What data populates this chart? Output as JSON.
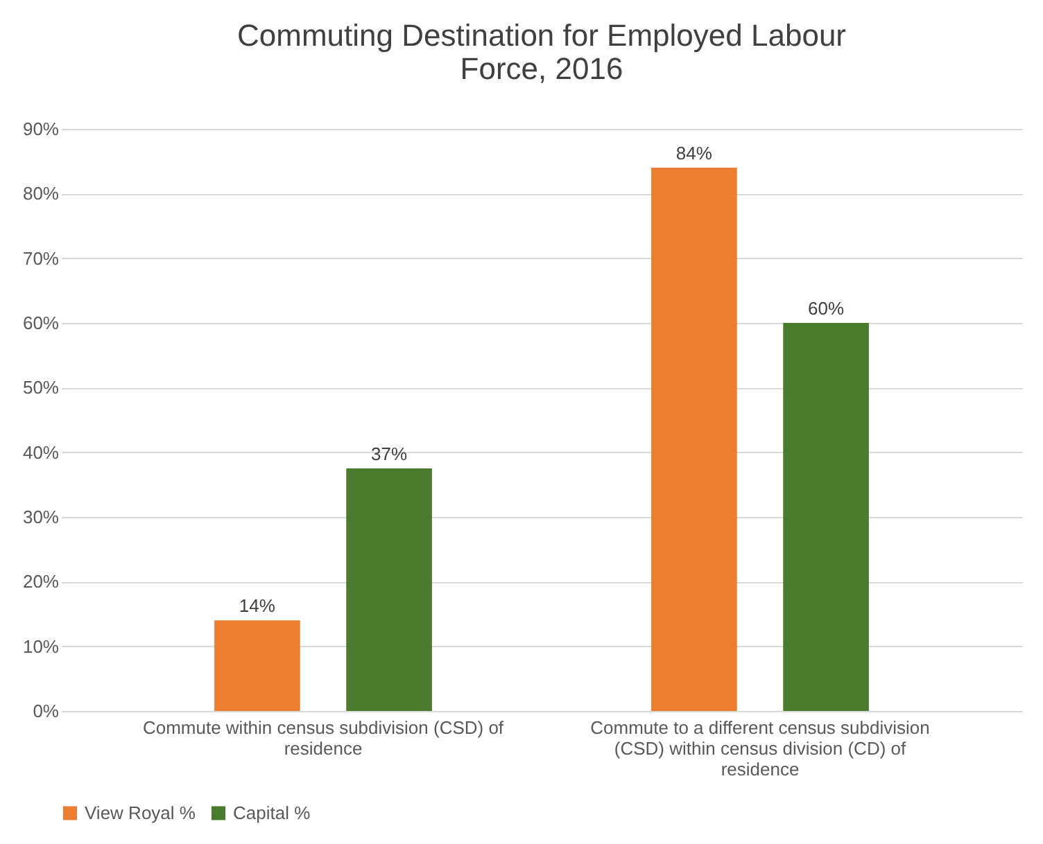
{
  "chart_data": {
    "type": "bar",
    "title": "Commuting Destination for Employed Labour Force, 2016",
    "categories": [
      "Commute within census subdivision (CSD) of residence",
      "Commute to a different census subdivision (CSD) within census division (CD) of residence"
    ],
    "series": [
      {
        "name": "View Royal %",
        "color": "#ed7d31",
        "values": [
          14,
          84
        ],
        "value_labels": [
          "14%",
          "84%"
        ]
      },
      {
        "name": "Capital %",
        "color": "#4a7a2c",
        "values": [
          37.5,
          60
        ],
        "value_labels": [
          "37%",
          "60%"
        ]
      }
    ],
    "ylim": [
      0,
      90
    ],
    "yticks": [
      {
        "value": 0,
        "label": "0%"
      },
      {
        "value": 10,
        "label": "10%"
      },
      {
        "value": 20,
        "label": "20%"
      },
      {
        "value": 30,
        "label": "30%"
      },
      {
        "value": 40,
        "label": "40%"
      },
      {
        "value": 50,
        "label": "50%"
      },
      {
        "value": 60,
        "label": "60%"
      },
      {
        "value": 70,
        "label": "70%"
      },
      {
        "value": 80,
        "label": "80%"
      },
      {
        "value": 90,
        "label": "90%"
      }
    ],
    "grid": "y",
    "legend": "bottom"
  }
}
